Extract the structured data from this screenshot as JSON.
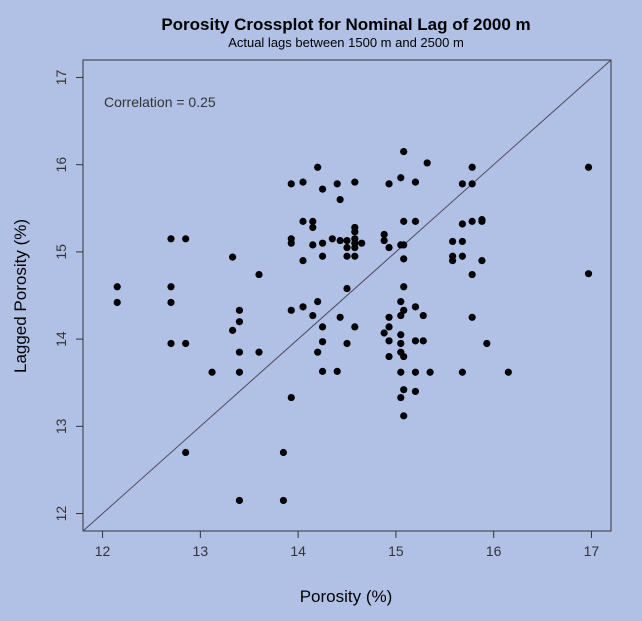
{
  "chart_data": {
    "type": "scatter",
    "title": "Porosity Crossplot for Nominal Lag of 2000 m",
    "subtitle": "Actual lags between 1500 m and 2500 m",
    "xlabel": "Porosity (%)",
    "ylabel": "Lagged Porosity (%)",
    "annotation": "Correlation = 0.25",
    "xlim": [
      11.8,
      17.2
    ],
    "ylim": [
      11.8,
      17.2
    ],
    "x_ticks": [
      "12",
      "13",
      "14",
      "15",
      "16",
      "17"
    ],
    "y_ticks": [
      "12",
      "13",
      "14",
      "15",
      "16",
      "17"
    ],
    "reference_line": "y = x",
    "grid": false,
    "colors": {
      "background": "#b1c1e6",
      "points": "#000000",
      "axes": "#333333"
    },
    "points": [
      [
        12.15,
        14.6
      ],
      [
        12.15,
        14.42
      ],
      [
        12.7,
        15.15
      ],
      [
        12.7,
        14.6
      ],
      [
        12.7,
        14.42
      ],
      [
        12.7,
        13.95
      ],
      [
        12.85,
        15.15
      ],
      [
        12.85,
        13.95
      ],
      [
        12.85,
        12.7
      ],
      [
        13.12,
        13.62
      ],
      [
        13.33,
        14.94
      ],
      [
        13.33,
        14.1
      ],
      [
        13.4,
        14.33
      ],
      [
        13.4,
        14.2
      ],
      [
        13.4,
        13.85
      ],
      [
        13.4,
        13.62
      ],
      [
        13.4,
        12.15
      ],
      [
        13.6,
        14.74
      ],
      [
        13.6,
        13.85
      ],
      [
        13.85,
        12.7
      ],
      [
        13.85,
        12.15
      ],
      [
        13.93,
        15.1
      ],
      [
        13.93,
        15.15
      ],
      [
        13.93,
        15.78
      ],
      [
        13.93,
        14.33
      ],
      [
        13.93,
        13.33
      ],
      [
        14.05,
        15.35
      ],
      [
        14.05,
        14.9
      ],
      [
        14.05,
        14.37
      ],
      [
        14.05,
        15.8
      ],
      [
        14.15,
        15.35
      ],
      [
        14.15,
        15.28
      ],
      [
        14.15,
        15.08
      ],
      [
        14.15,
        14.27
      ],
      [
        14.2,
        15.97
      ],
      [
        14.2,
        14.43
      ],
      [
        14.2,
        13.85
      ],
      [
        14.25,
        15.72
      ],
      [
        14.25,
        15.1
      ],
      [
        14.25,
        14.95
      ],
      [
        14.25,
        14.14
      ],
      [
        14.25,
        13.97
      ],
      [
        14.25,
        13.63
      ],
      [
        14.35,
        15.15
      ],
      [
        14.4,
        15.78
      ],
      [
        14.4,
        13.63
      ],
      [
        14.43,
        15.6
      ],
      [
        14.43,
        15.13
      ],
      [
        14.43,
        14.25
      ],
      [
        14.5,
        15.13
      ],
      [
        14.5,
        15.05
      ],
      [
        14.5,
        14.95
      ],
      [
        14.5,
        14.58
      ],
      [
        14.5,
        13.95
      ],
      [
        14.58,
        15.8
      ],
      [
        14.58,
        15.28
      ],
      [
        14.58,
        15.23
      ],
      [
        14.58,
        15.15
      ],
      [
        14.58,
        15.1
      ],
      [
        14.58,
        15.05
      ],
      [
        14.58,
        14.95
      ],
      [
        14.58,
        14.14
      ],
      [
        14.65,
        15.1
      ],
      [
        14.88,
        15.2
      ],
      [
        14.88,
        15.13
      ],
      [
        14.88,
        14.07
      ],
      [
        14.93,
        15.78
      ],
      [
        14.93,
        15.05
      ],
      [
        14.93,
        14.25
      ],
      [
        14.93,
        14.14
      ],
      [
        14.93,
        13.98
      ],
      [
        14.93,
        13.8
      ],
      [
        15.05,
        15.85
      ],
      [
        15.05,
        15.08
      ],
      [
        15.05,
        14.43
      ],
      [
        15.05,
        14.27
      ],
      [
        15.05,
        14.05
      ],
      [
        15.05,
        13.95
      ],
      [
        15.05,
        13.85
      ],
      [
        15.05,
        13.62
      ],
      [
        15.05,
        13.33
      ],
      [
        15.08,
        16.15
      ],
      [
        15.08,
        15.35
      ],
      [
        15.08,
        15.08
      ],
      [
        15.08,
        14.92
      ],
      [
        15.08,
        14.6
      ],
      [
        15.08,
        14.33
      ],
      [
        15.08,
        13.8
      ],
      [
        15.08,
        13.42
      ],
      [
        15.08,
        13.12
      ],
      [
        15.2,
        15.8
      ],
      [
        15.2,
        15.35
      ],
      [
        15.2,
        14.37
      ],
      [
        15.2,
        13.98
      ],
      [
        15.2,
        13.62
      ],
      [
        15.2,
        13.4
      ],
      [
        15.28,
        14.27
      ],
      [
        15.28,
        13.98
      ],
      [
        15.32,
        16.02
      ],
      [
        15.35,
        13.62
      ],
      [
        15.58,
        15.12
      ],
      [
        15.58,
        14.95
      ],
      [
        15.58,
        14.9
      ],
      [
        15.68,
        15.78
      ],
      [
        15.68,
        15.32
      ],
      [
        15.68,
        15.12
      ],
      [
        15.68,
        14.95
      ],
      [
        15.68,
        13.62
      ],
      [
        15.78,
        15.97
      ],
      [
        15.78,
        15.78
      ],
      [
        15.78,
        15.35
      ],
      [
        15.78,
        14.74
      ],
      [
        15.78,
        14.25
      ],
      [
        15.88,
        15.37
      ],
      [
        15.88,
        15.35
      ],
      [
        15.88,
        14.9
      ],
      [
        15.93,
        13.95
      ],
      [
        16.15,
        13.62
      ],
      [
        16.97,
        15.97
      ],
      [
        16.97,
        14.75
      ]
    ]
  }
}
